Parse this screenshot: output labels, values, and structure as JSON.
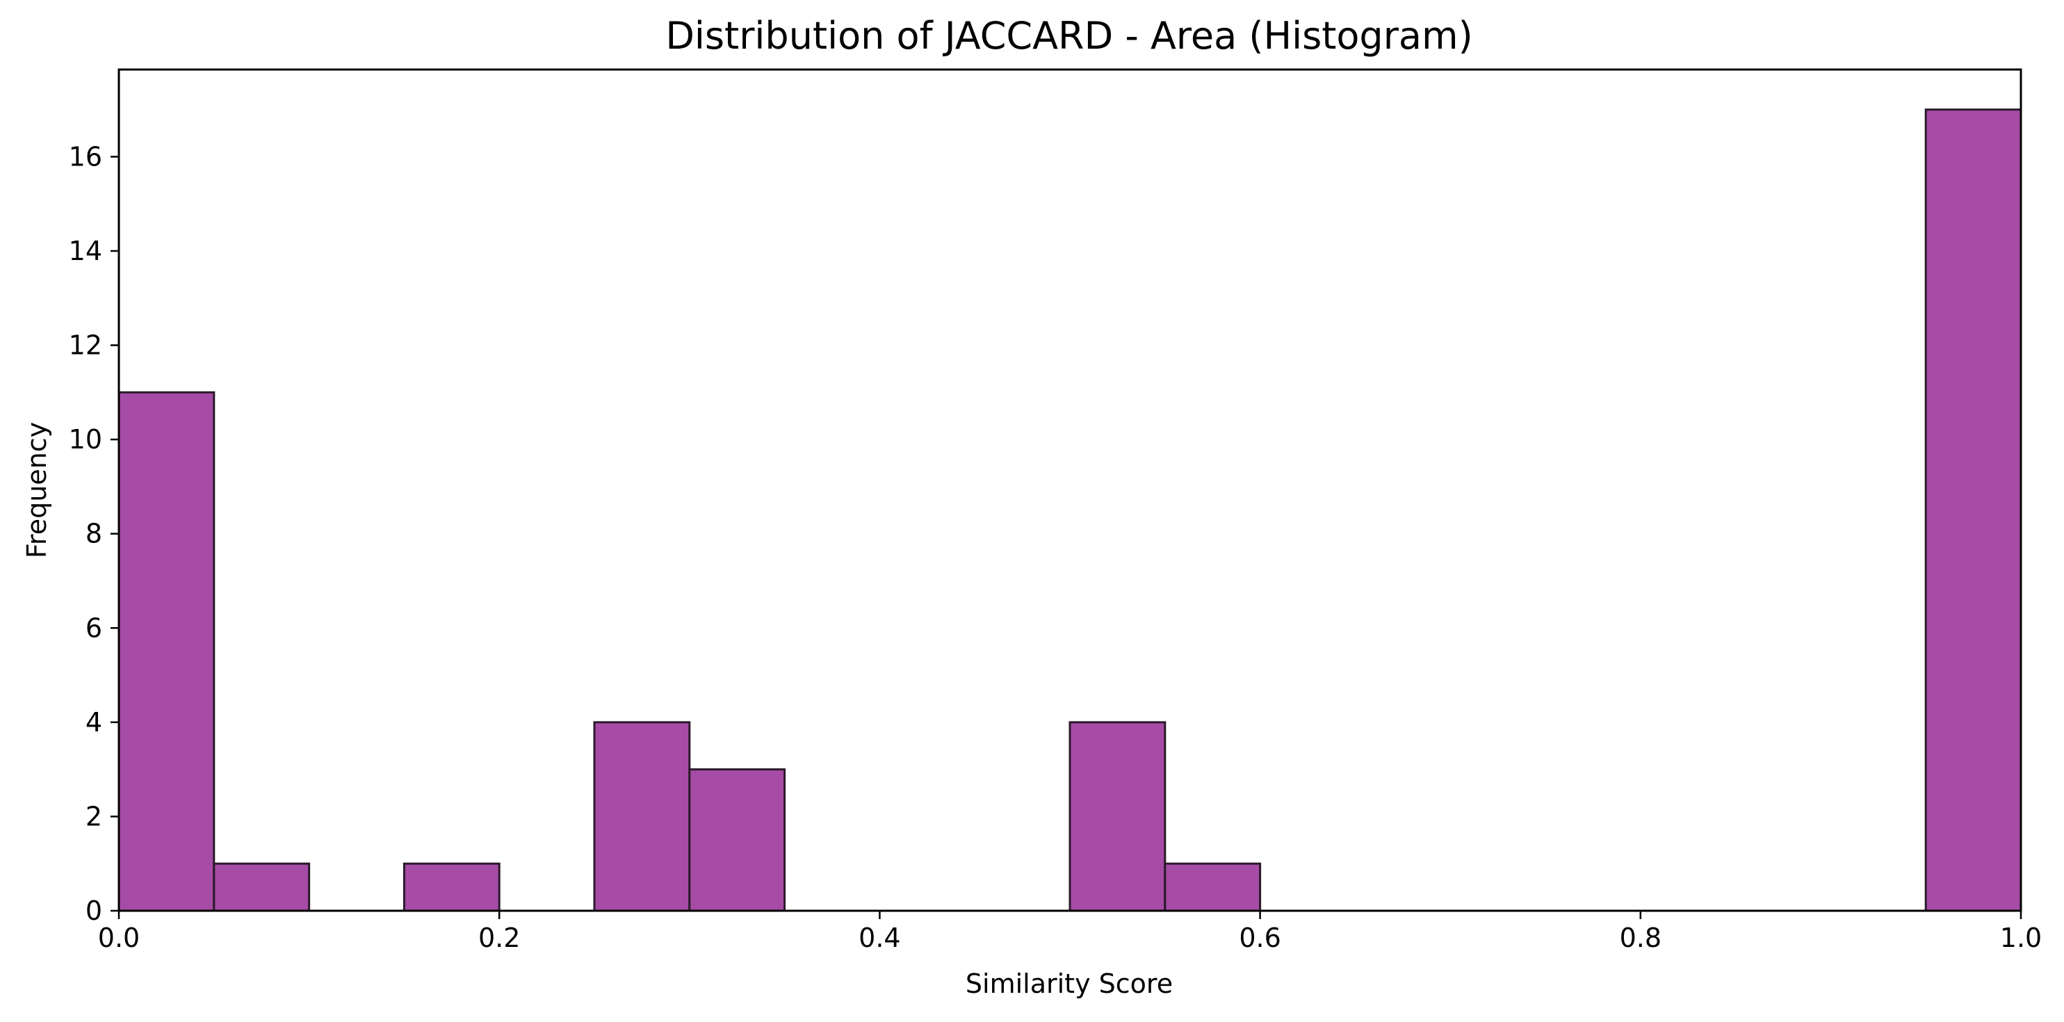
{
  "chart_data": {
    "type": "bar",
    "title": "Distribution of JACCARD - Area (Histogram)",
    "xlabel": "Similarity Score",
    "ylabel": "Frequency",
    "xlim": [
      0.0,
      1.0
    ],
    "ylim": [
      0,
      17.85
    ],
    "bins": [
      {
        "x0": 0.0,
        "x1": 0.05,
        "count": 11
      },
      {
        "x0": 0.05,
        "x1": 0.1,
        "count": 1
      },
      {
        "x0": 0.1,
        "x1": 0.15,
        "count": 0
      },
      {
        "x0": 0.15,
        "x1": 0.2,
        "count": 1
      },
      {
        "x0": 0.2,
        "x1": 0.25,
        "count": 0
      },
      {
        "x0": 0.25,
        "x1": 0.3,
        "count": 4
      },
      {
        "x0": 0.3,
        "x1": 0.35,
        "count": 3
      },
      {
        "x0": 0.35,
        "x1": 0.4,
        "count": 0
      },
      {
        "x0": 0.4,
        "x1": 0.45,
        "count": 0
      },
      {
        "x0": 0.45,
        "x1": 0.5,
        "count": 0
      },
      {
        "x0": 0.5,
        "x1": 0.55,
        "count": 4
      },
      {
        "x0": 0.55,
        "x1": 0.6,
        "count": 1
      },
      {
        "x0": 0.6,
        "x1": 0.65,
        "count": 0
      },
      {
        "x0": 0.65,
        "x1": 0.7,
        "count": 0
      },
      {
        "x0": 0.7,
        "x1": 0.75,
        "count": 0
      },
      {
        "x0": 0.75,
        "x1": 0.8,
        "count": 0
      },
      {
        "x0": 0.8,
        "x1": 0.85,
        "count": 0
      },
      {
        "x0": 0.85,
        "x1": 0.9,
        "count": 0
      },
      {
        "x0": 0.9,
        "x1": 0.95,
        "count": 0
      },
      {
        "x0": 0.95,
        "x1": 1.0,
        "count": 17
      }
    ],
    "xticks": [
      {
        "value": 0.0,
        "label": "0.0"
      },
      {
        "value": 0.2,
        "label": "0.2"
      },
      {
        "value": 0.4,
        "label": "0.4"
      },
      {
        "value": 0.6,
        "label": "0.6"
      },
      {
        "value": 0.8,
        "label": "0.8"
      },
      {
        "value": 1.0,
        "label": "1.0"
      }
    ],
    "yticks": [
      {
        "value": 0,
        "label": "0"
      },
      {
        "value": 2,
        "label": "2"
      },
      {
        "value": 4,
        "label": "4"
      },
      {
        "value": 6,
        "label": "6"
      },
      {
        "value": 8,
        "label": "8"
      },
      {
        "value": 10,
        "label": "10"
      },
      {
        "value": 12,
        "label": "12"
      },
      {
        "value": 14,
        "label": "14"
      },
      {
        "value": 16,
        "label": "16"
      }
    ],
    "grid": false,
    "colors": {
      "bar_fill": "#a64ca6",
      "bar_edge": "#2b1a2b",
      "axis": "#000000"
    }
  }
}
